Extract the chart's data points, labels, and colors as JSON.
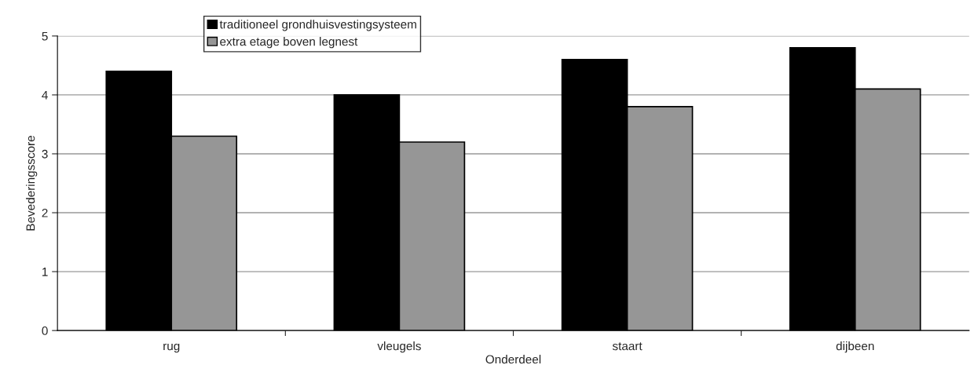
{
  "chart_data": {
    "type": "bar",
    "xlabel": "Onderdeel",
    "ylabel": "Bevederingsscore",
    "categories": [
      "rug",
      "vleugels",
      "staart",
      "dijbeen"
    ],
    "series": [
      {
        "name": "traditioneel grondhuisvestingsysteem",
        "color": "#000000",
        "values": [
          4.4,
          4.0,
          4.6,
          4.8
        ]
      },
      {
        "name": "extra etage boven legnest",
        "color": "#969696",
        "values": [
          3.3,
          3.2,
          3.8,
          4.1
        ]
      }
    ],
    "ylim": [
      0,
      5
    ],
    "yticks": [
      0,
      1,
      2,
      3,
      4,
      5
    ],
    "grid": "y",
    "legend": "top"
  }
}
